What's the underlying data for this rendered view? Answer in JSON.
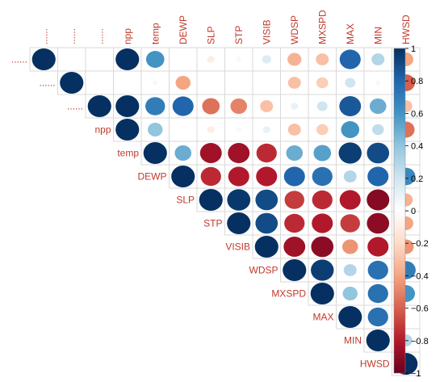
{
  "chart_data": {
    "type": "heatmap",
    "variables": [
      "",
      "",
      "",
      "npp",
      "temp",
      "DEWP",
      "SLP",
      "STP",
      "VISIB",
      "WDSP",
      "MXSPD",
      "MAX",
      "MIN",
      "HWSD"
    ],
    "column_labels": [
      "......",
      "......",
      "......",
      "npp",
      "temp",
      "DEWP",
      "SLP",
      "STP",
      "VISIB",
      "WDSP",
      "MXSPD",
      "MAX",
      "MIN",
      "HWSD"
    ],
    "row_labels": [
      "......",
      "......",
      "......",
      "npp",
      "temp",
      "DEWP",
      "SLP",
      "STP",
      "VISIB",
      "WDSP",
      "MXSPD",
      "MAX",
      "MIN",
      "HWSD"
    ],
    "shape": "upper-triangle circles",
    "matrix": [
      [
        1.0,
        0.0,
        0.0,
        1.0,
        0.6,
        0.0,
        -0.1,
        -0.05,
        0.15,
        -0.35,
        -0.3,
        0.8,
        0.3,
        -0.4
      ],
      [
        null,
        1.0,
        0.0,
        0.0,
        0.05,
        -0.4,
        0.0,
        0.0,
        0.0,
        -0.3,
        -0.25,
        0.2,
        -0.05,
        -0.6
      ],
      [
        null,
        null,
        1.0,
        1.0,
        0.7,
        0.8,
        -0.55,
        -0.5,
        -0.3,
        0.1,
        0.2,
        0.85,
        0.5,
        -0.3
      ],
      [
        null,
        null,
        null,
        1.0,
        0.4,
        0.0,
        -0.1,
        -0.05,
        0.1,
        -0.3,
        -0.25,
        0.6,
        0.25,
        -0.55
      ],
      [
        null,
        null,
        null,
        null,
        1.0,
        0.5,
        -0.85,
        -0.85,
        -0.75,
        0.5,
        0.55,
        0.95,
        0.9,
        -0.05
      ],
      [
        null,
        null,
        null,
        null,
        null,
        1.0,
        -0.75,
        -0.8,
        -0.8,
        0.8,
        0.75,
        0.3,
        0.8,
        0.65
      ],
      [
        null,
        null,
        null,
        null,
        null,
        null,
        1.0,
        0.97,
        0.9,
        -0.7,
        -0.75,
        -0.8,
        -0.92,
        -0.35
      ],
      [
        null,
        null,
        null,
        null,
        null,
        null,
        null,
        1.0,
        0.9,
        -0.75,
        -0.8,
        -0.7,
        -0.9,
        -0.4
      ],
      [
        null,
        null,
        null,
        null,
        null,
        null,
        null,
        null,
        1.0,
        -0.85,
        -0.9,
        -0.45,
        -0.8,
        -0.45
      ],
      [
        null,
        null,
        null,
        null,
        null,
        null,
        null,
        null,
        null,
        1.0,
        0.95,
        0.3,
        0.75,
        0.7
      ],
      [
        null,
        null,
        null,
        null,
        null,
        null,
        null,
        null,
        null,
        null,
        1.0,
        0.4,
        0.75,
        0.6
      ],
      [
        null,
        null,
        null,
        null,
        null,
        null,
        null,
        null,
        null,
        null,
        null,
        1.0,
        0.75,
        -0.05
      ],
      [
        null,
        null,
        null,
        null,
        null,
        null,
        null,
        null,
        null,
        null,
        null,
        null,
        1.0,
        0.3
      ],
      [
        null,
        null,
        null,
        null,
        null,
        null,
        null,
        null,
        null,
        null,
        null,
        null,
        null,
        1.0
      ]
    ],
    "colorbar": {
      "range": [
        -1,
        1
      ],
      "ticks": [
        "1",
        "0.8",
        "0.6",
        "0.4",
        "0.2",
        "0",
        "−0.2",
        "−0.4",
        "−0.6",
        "−0.8",
        "−1"
      ],
      "colors": {
        "negative": "#67001f",
        "mid_neg": "#d6604d",
        "neutral": "#ffffff",
        "mid_pos": "#4393c3",
        "positive": "#053061"
      }
    },
    "title": "",
    "xlabel": "",
    "ylabel": ""
  }
}
